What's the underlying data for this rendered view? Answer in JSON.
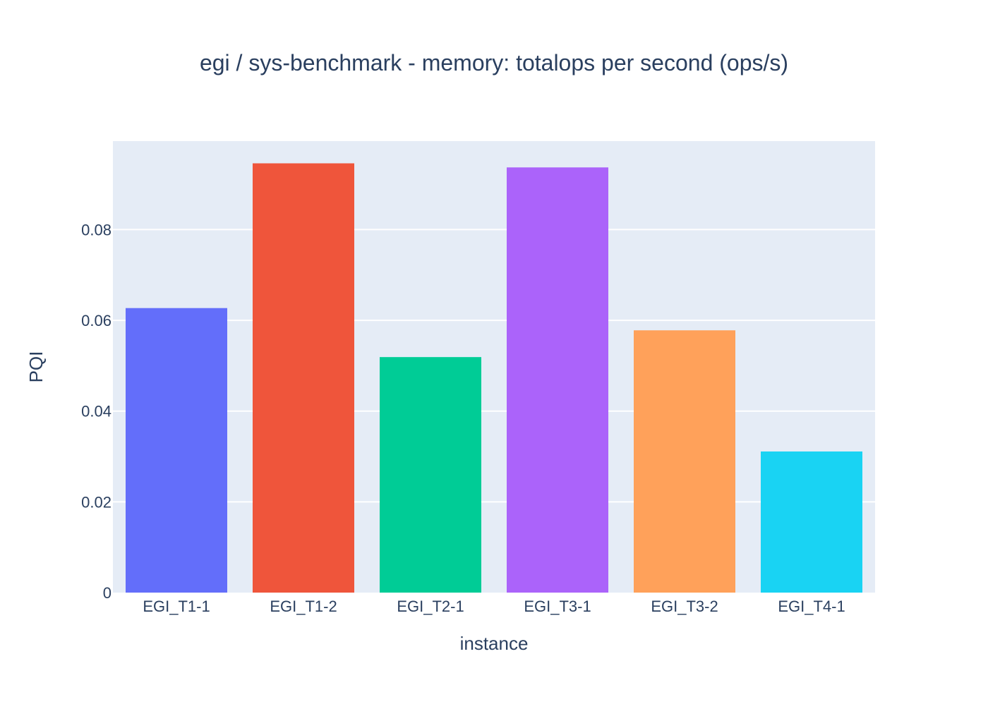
{
  "chart_data": {
    "type": "bar",
    "title": "egi / sys-benchmark - memory: totalops per second (ops/s)",
    "xlabel": "instance",
    "ylabel": "PQI",
    "categories": [
      "EGI_T1-1",
      "EGI_T1-2",
      "EGI_T2-1",
      "EGI_T3-1",
      "EGI_T3-2",
      "EGI_T4-1"
    ],
    "values": [
      0.0627,
      0.0946,
      0.0519,
      0.0937,
      0.0578,
      0.0311
    ],
    "colors": [
      "#636efa",
      "#ef553b",
      "#00cc96",
      "#ab63fa",
      "#ffa15a",
      "#19d3f3"
    ],
    "ylim": [
      0,
      0.0995
    ],
    "yticks": [
      0,
      0.02,
      0.04,
      0.06,
      0.08
    ],
    "ytick_labels": [
      "0",
      "0.02",
      "0.04",
      "0.06",
      "0.08"
    ],
    "grid": true,
    "plot_background": "#e5ecf6",
    "legend": "none"
  }
}
